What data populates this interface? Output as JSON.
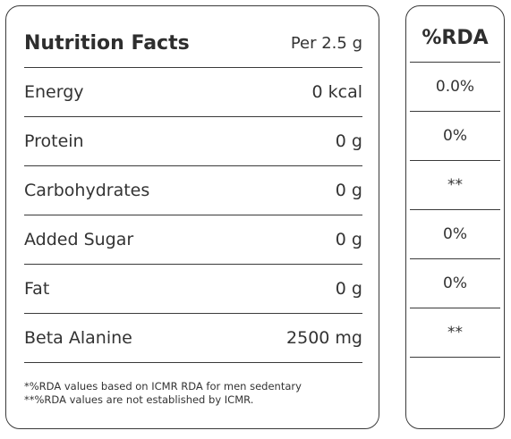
{
  "facts": {
    "title": "Nutrition Facts",
    "serving": "Per 2.5 g",
    "rows": [
      {
        "label": "Energy",
        "value": "0 kcal"
      },
      {
        "label": "Protein",
        "value": "0 g"
      },
      {
        "label": "Carbohydrates",
        "value": "0 g"
      },
      {
        "label": "Added Sugar",
        "value": "0 g"
      },
      {
        "label": "Fat",
        "value": "0 g"
      },
      {
        "label": "Beta Alanine",
        "value": "2500 mg"
      }
    ],
    "notes": [
      "*%RDA values based on ICMR RDA for men sedentary",
      "**%RDA values are not established by ICMR."
    ]
  },
  "rda": {
    "title": "%RDA",
    "values": [
      "0.0%",
      "0%",
      "**",
      "0%",
      "0%",
      "**"
    ]
  }
}
